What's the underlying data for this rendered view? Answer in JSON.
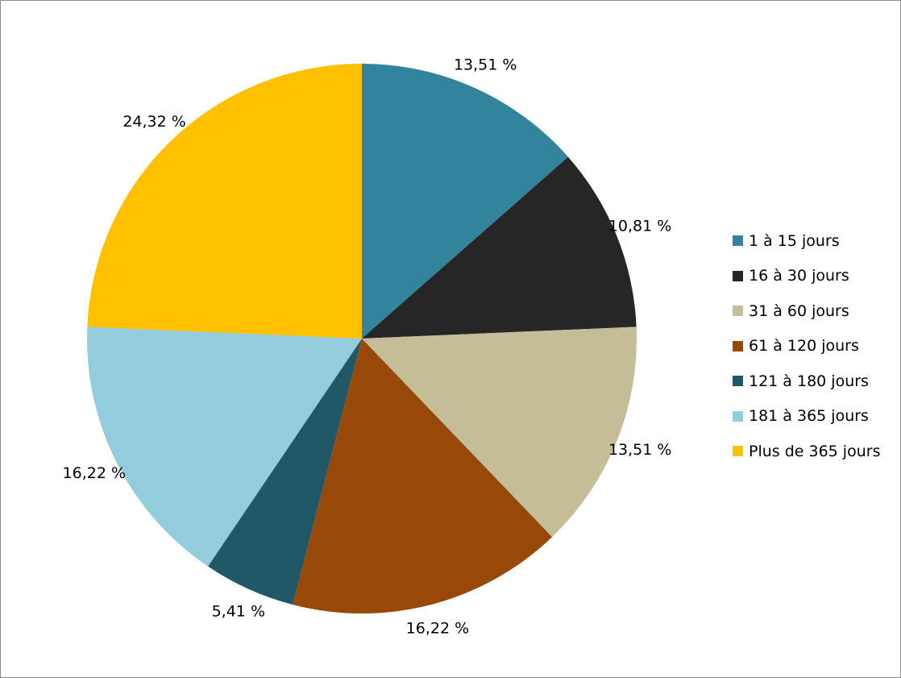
{
  "chart_data": {
    "type": "pie",
    "title": "",
    "start_angle": "12 o'clock, clockwise",
    "legend_position": "right",
    "slices": [
      {
        "label": "1 à 15 jours",
        "value": 13.51,
        "value_label": "13,51 %",
        "color": "#31849B"
      },
      {
        "label": "16 à 30 jours",
        "value": 10.81,
        "value_label": "10,81 %",
        "color": "#262626"
      },
      {
        "label": "31 à 60 jours",
        "value": 13.51,
        "value_label": "13,51 %",
        "color": "#C4BD97"
      },
      {
        "label": "61 à 120 jours",
        "value": 16.22,
        "value_label": "16,22 %",
        "color": "#984807"
      },
      {
        "label": "121 à 180 jours",
        "value": 5.41,
        "value_label": "5,41 %",
        "color": "#215868"
      },
      {
        "label": "181 à 365 jours",
        "value": 16.22,
        "value_label": "16,22 %",
        "color": "#93CDDD"
      },
      {
        "label": "Plus de 365 jours",
        "value": 24.32,
        "value_label": "24,32 %",
        "color": "#FFC000"
      }
    ]
  }
}
